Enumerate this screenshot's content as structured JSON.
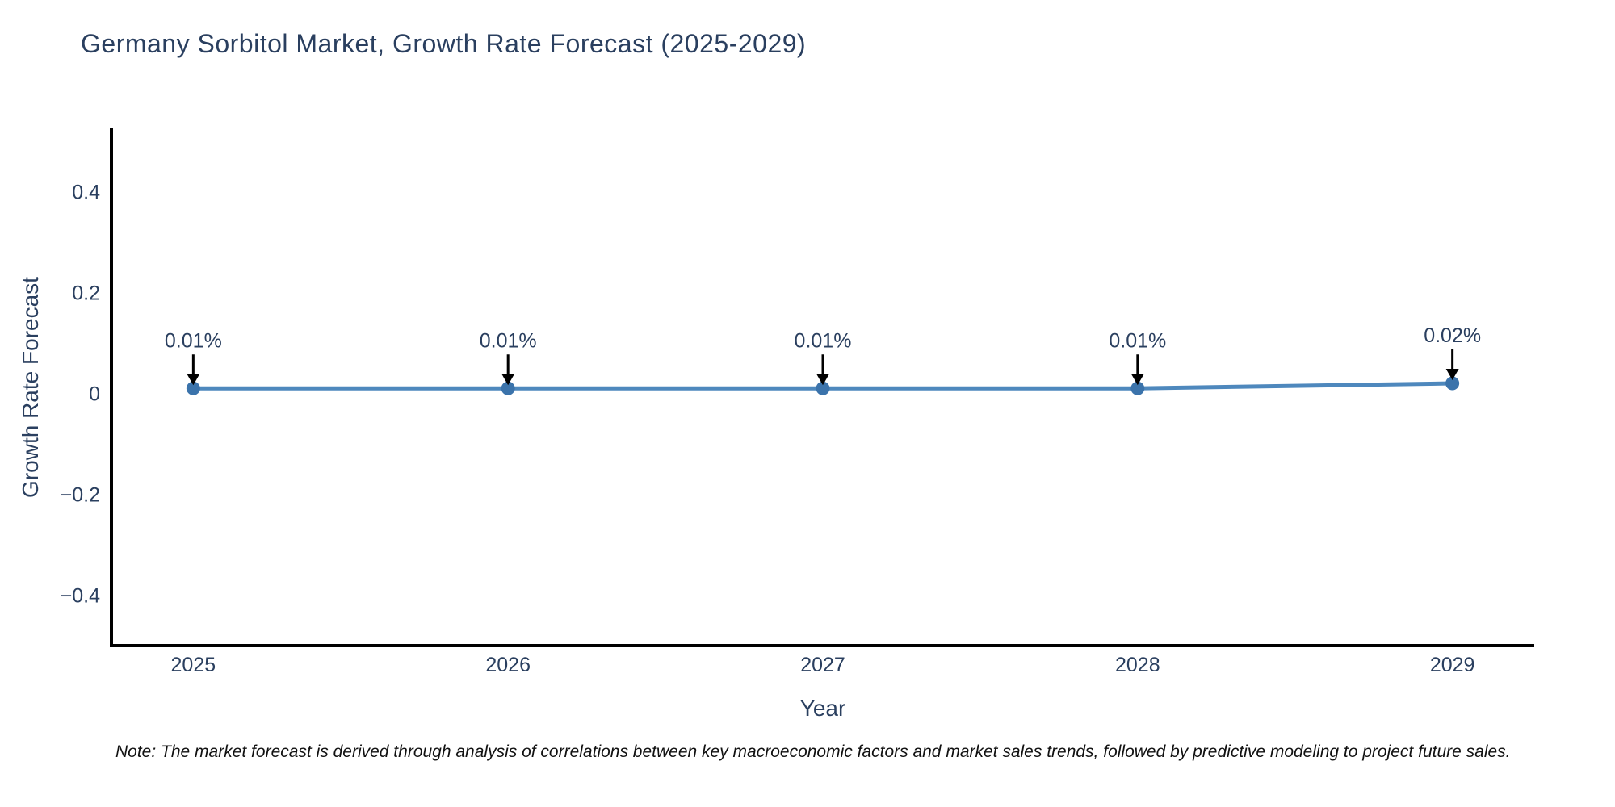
{
  "title": "Germany Sorbitol Market, Growth Rate Forecast (2025-2029)",
  "note": "Note: The market forecast is derived through analysis of correlations between key macroeconomic factors and market sales trends, followed by predictive modeling to project future sales.",
  "chart_data": {
    "type": "line",
    "title": "Germany Sorbitol Market, Growth Rate Forecast (2025-2029)",
    "xlabel": "Year",
    "ylabel": "Growth Rate Forecast",
    "x": [
      2025,
      2026,
      2027,
      2028,
      2029
    ],
    "x_tick_labels": [
      "2025",
      "2026",
      "2027",
      "2028",
      "2029"
    ],
    "values": [
      0.01,
      0.01,
      0.01,
      0.01,
      0.02
    ],
    "point_labels": [
      "0.01%",
      "0.01%",
      "0.01%",
      "0.01%",
      "0.02%"
    ],
    "y_ticks": [
      0.4,
      0.2,
      0,
      -0.2,
      -0.4
    ],
    "y_tick_labels": [
      "0.4",
      "0.2",
      "0",
      "−0.2",
      "−0.4"
    ],
    "xlim": [
      2024.74,
      2029.26
    ],
    "ylim": [
      -0.5,
      0.524
    ],
    "grid": false,
    "legend": "none",
    "colors": {
      "line": "#4e88bd",
      "marker": "#3b73ab",
      "axis": "#000000",
      "text": "#2a3f5f",
      "annotation_arrow": "#000000",
      "background": "#ffffff"
    }
  }
}
